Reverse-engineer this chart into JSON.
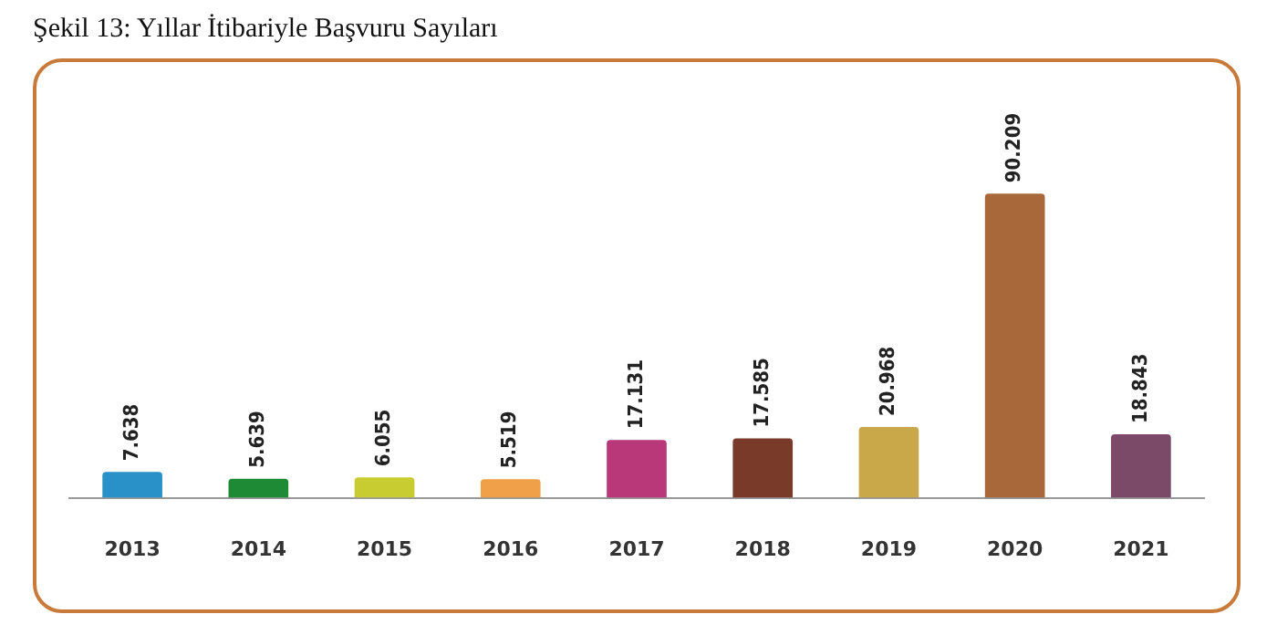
{
  "chart_data": {
    "type": "bar",
    "title": "Şekil 13: Yıllar İtibariyle Başvuru Sayıları",
    "categories": [
      "2013",
      "2014",
      "2015",
      "2016",
      "2017",
      "2018",
      "2019",
      "2020",
      "2021"
    ],
    "values": [
      7638,
      5639,
      6055,
      5519,
      17131,
      17585,
      20968,
      90209,
      18843
    ],
    "value_labels": [
      "7.638",
      "5.639",
      "6.055",
      "5.519",
      "17.131",
      "17.585",
      "20.968",
      "90.209",
      "18.843"
    ],
    "colors": [
      "#2a90c8",
      "#1e8a36",
      "#c8cc30",
      "#f0a048",
      "#b8387a",
      "#7a3a2a",
      "#c8a848",
      "#a8683a",
      "#7a4a68"
    ],
    "grid": false,
    "legend": false
  }
}
